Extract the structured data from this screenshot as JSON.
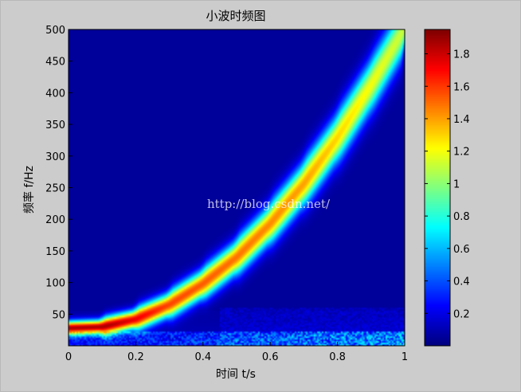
{
  "chart_data": {
    "type": "heatmap",
    "title": "小波时频图",
    "xlabel": "时间 t/s",
    "ylabel": "频率 f/Hz",
    "xlim": [
      0,
      1
    ],
    "ylim": [
      0,
      500
    ],
    "xticks": [
      0,
      0.2,
      0.4,
      0.6,
      0.8,
      1
    ],
    "xtick_labels": [
      "0",
      "0.2",
      "0.4",
      "0.6",
      "0.8",
      "1"
    ],
    "yticks": [
      50,
      100,
      150,
      200,
      250,
      300,
      350,
      400,
      450,
      500
    ],
    "ytick_labels": [
      "50",
      "100",
      "150",
      "200",
      "250",
      "300",
      "350",
      "400",
      "450",
      "500"
    ],
    "colormap": "jet",
    "colorbar": {
      "range": [
        0,
        1.95
      ],
      "ticks": [
        0.2,
        0.4,
        0.6,
        0.8,
        1,
        1.2,
        1.4,
        1.6,
        1.8
      ],
      "tick_labels": [
        "0.2",
        "0.4",
        "0.6",
        "0.8",
        "1",
        "1.2",
        "1.4",
        "1.6",
        "1.8"
      ]
    },
    "ridge_points": [
      {
        "t": 0.0,
        "f": 28
      },
      {
        "t": 0.1,
        "f": 30
      },
      {
        "t": 0.2,
        "f": 42
      },
      {
        "t": 0.3,
        "f": 65
      },
      {
        "t": 0.4,
        "f": 98
      },
      {
        "t": 0.5,
        "f": 140
      },
      {
        "t": 0.6,
        "f": 193
      },
      {
        "t": 0.7,
        "f": 256
      },
      {
        "t": 0.8,
        "f": 329
      },
      {
        "t": 0.9,
        "f": 412
      },
      {
        "t": 0.97,
        "f": 475
      }
    ]
  },
  "watermark": "http://blog.csdn.net/",
  "colors": {
    "background": "#cccccc",
    "plot_floor": "#00008f"
  }
}
